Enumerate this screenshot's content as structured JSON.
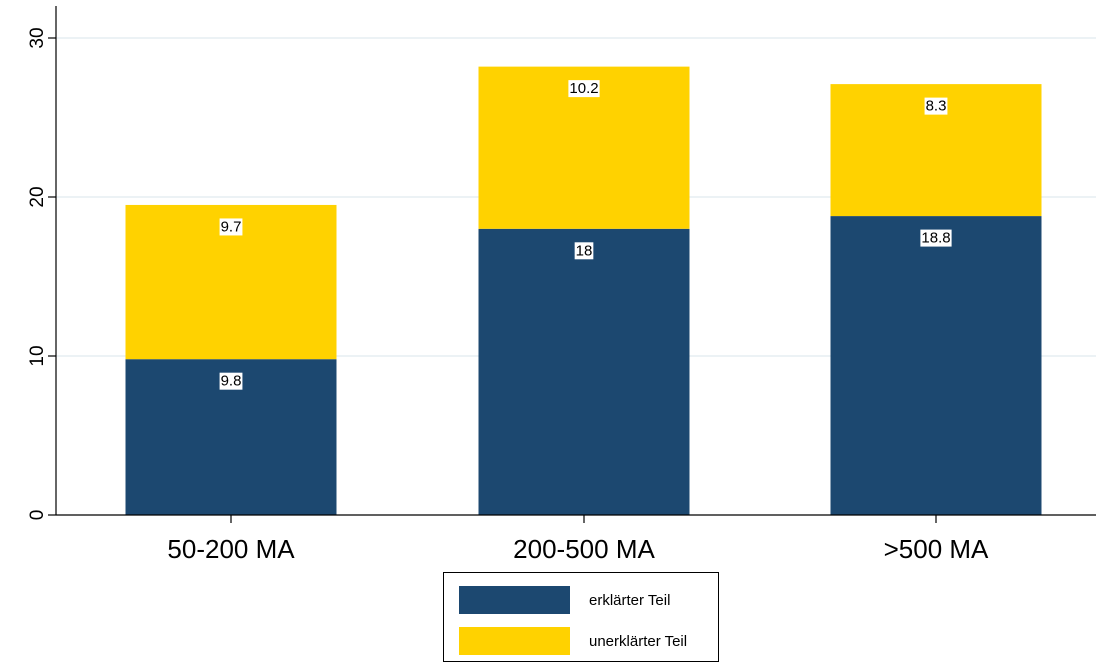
{
  "chart_data": {
    "type": "bar",
    "stacked": true,
    "categories": [
      "50-200 MA",
      "200-500 MA",
      ">500 MA"
    ],
    "series": [
      {
        "name": "erklärter Teil",
        "values": [
          9.8,
          18,
          18.8
        ],
        "color": "#1c4870"
      },
      {
        "name": "unerklärter Teil",
        "values": [
          9.7,
          10.2,
          8.3
        ],
        "color": "#ffd200"
      }
    ],
    "data_labels": [
      [
        "9.8",
        "18",
        "18.8"
      ],
      [
        "9.7",
        "10.2",
        "8.3"
      ]
    ],
    "title": "",
    "xlabel": "",
    "ylabel": "",
    "ylim": [
      0,
      32
    ],
    "yticks": [
      0,
      10,
      20,
      30
    ],
    "grid": true,
    "grid_color": "#e6eef2",
    "legend_position": "bottom"
  }
}
